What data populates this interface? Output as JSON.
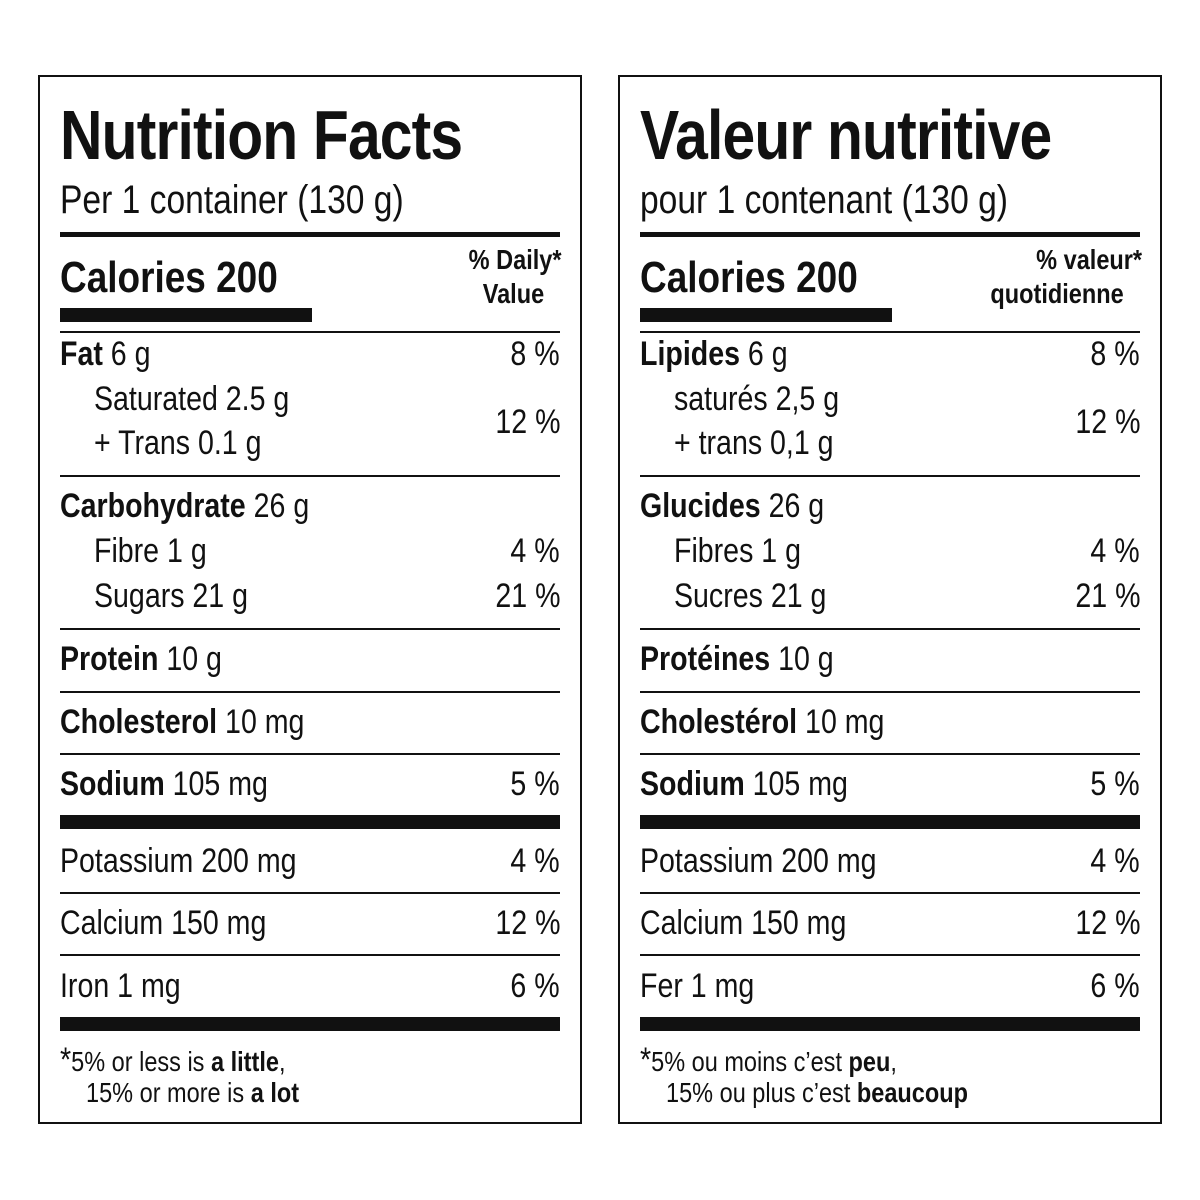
{
  "english": {
    "title": "Nutrition Facts",
    "serving": "Per 1 container (130 g)",
    "calories_label": "Calories 200",
    "dv_line1": "% Daily",
    "dv_star": "*",
    "dv_line2": "Value",
    "fat_name": "Fat",
    "fat_amount": "6 g",
    "fat_pct": "8 %",
    "saturated": "Saturated 2.5 g",
    "trans": "+ Trans 0.1 g",
    "sat_trans_pct": "12 %",
    "carb_name": "Carbohydrate",
    "carb_amount": "26 g",
    "fibre": "Fibre 1 g",
    "fibre_pct": "4 %",
    "sugars": "Sugars 21 g",
    "sugars_pct": "21 %",
    "protein_name": "Protein",
    "protein_amount": "10 g",
    "chol_name": "Cholesterol",
    "chol_amount": "10 mg",
    "sodium_name": "Sodium",
    "sodium_amount": "105 mg",
    "sodium_pct": "5 %",
    "potassium": "Potassium 200 mg",
    "potassium_pct": "4 %",
    "calcium": "Calcium 150 mg",
    "calcium_pct": "12 %",
    "iron": "Iron 1 mg",
    "iron_pct": "6 %",
    "foot_star": "*",
    "foot1_a": "5% or less is ",
    "foot1_b": "a little",
    "foot1_c": ",",
    "foot2_a": "15% or more is ",
    "foot2_b": "a lot"
  },
  "french": {
    "title": "Valeur nutritive",
    "serving": "pour 1 contenant (130 g)",
    "calories_label": "Calories 200",
    "dv_line1": "% valeur",
    "dv_star": "*",
    "dv_line2": "quotidienne",
    "fat_name": "Lipides",
    "fat_amount": "6 g",
    "fat_pct": "8 %",
    "saturated": "saturés 2,5 g",
    "trans": "+ trans 0,1 g",
    "sat_trans_pct": "12 %",
    "carb_name": "Glucides",
    "carb_amount": "26 g",
    "fibre": "Fibres 1 g",
    "fibre_pct": "4 %",
    "sugars": "Sucres 21 g",
    "sugars_pct": "21 %",
    "protein_name": "Protéines",
    "protein_amount": "10 g",
    "chol_name": "Cholestérol",
    "chol_amount": "10 mg",
    "sodium_name": "Sodium",
    "sodium_amount": "105 mg",
    "sodium_pct": "5 %",
    "potassium": "Potassium 200 mg",
    "potassium_pct": "4 %",
    "calcium": "Calcium 150 mg",
    "calcium_pct": "12 %",
    "iron": "Fer 1 mg",
    "iron_pct": "6 %",
    "foot_star": "*",
    "foot1_a": "5% ou moins c’est ",
    "foot1_b": "peu",
    "foot1_c": ",",
    "foot2_a": "15% ou plus c’est ",
    "foot2_b": "beaucoup"
  }
}
